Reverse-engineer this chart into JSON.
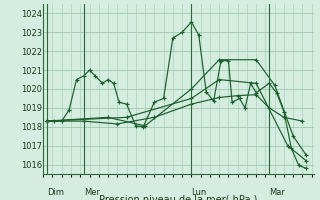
{
  "bg_color": "#d4ede0",
  "grid_color": "#a0c8b0",
  "line_color": "#1a5e2a",
  "xlabel": "Pression niveau de la mer( hPa )",
  "ylim": [
    1015.5,
    1024.5
  ],
  "yticks": [
    1016,
    1017,
    1018,
    1019,
    1020,
    1021,
    1022,
    1023,
    1024
  ],
  "xlim": [
    0,
    14.6
  ],
  "day_labels": [
    "Dim",
    "Mer",
    "Lun",
    "Mar"
  ],
  "day_positions": [
    0.2,
    2.2,
    8.0,
    12.2
  ],
  "vline_positions": [
    0.2,
    2.2,
    8.0,
    12.2
  ],
  "lines": [
    [
      0.2,
      1018.3,
      0.6,
      1018.3,
      1.0,
      1018.3,
      1.4,
      1018.9,
      1.8,
      1020.5,
      2.2,
      1020.7,
      2.5,
      1021.0,
      2.8,
      1020.7,
      3.2,
      1020.3,
      3.5,
      1020.5,
      3.8,
      1020.3,
      4.1,
      1019.3,
      4.5,
      1019.2,
      5.0,
      1018.05,
      5.4,
      1018.0,
      6.0,
      1019.3,
      6.5,
      1019.5,
      7.0,
      1022.7,
      7.5,
      1023.0,
      8.0,
      1023.55,
      8.4,
      1022.85,
      8.8,
      1019.85,
      9.2,
      1019.35,
      9.6,
      1021.5,
      10.0,
      1021.5,
      10.2,
      1019.3,
      10.6,
      1019.5,
      10.9,
      1019.0,
      11.2,
      1020.3,
      11.5,
      1019.8,
      12.2,
      1020.3,
      12.6,
      1019.8,
      13.0,
      1018.8,
      13.4,
      1016.85,
      13.8,
      1015.95,
      14.2,
      1015.8
    ],
    [
      0.2,
      1018.3,
      2.2,
      1018.3,
      4.0,
      1018.15,
      6.0,
      1018.5,
      8.0,
      1019.2,
      9.5,
      1019.55,
      10.5,
      1019.65,
      11.5,
      1019.7,
      12.2,
      1019.0,
      13.0,
      1018.5,
      14.0,
      1018.3
    ],
    [
      0.2,
      1018.3,
      3.5,
      1018.5,
      5.5,
      1018.05,
      8.0,
      1020.0,
      9.5,
      1021.55,
      11.5,
      1021.55,
      12.5,
      1020.2,
      13.5,
      1017.5,
      14.2,
      1016.5
    ],
    [
      0.2,
      1018.3,
      4.5,
      1018.5,
      8.0,
      1019.5,
      9.5,
      1020.5,
      11.5,
      1020.3,
      13.2,
      1017.0,
      14.2,
      1016.2
    ]
  ]
}
